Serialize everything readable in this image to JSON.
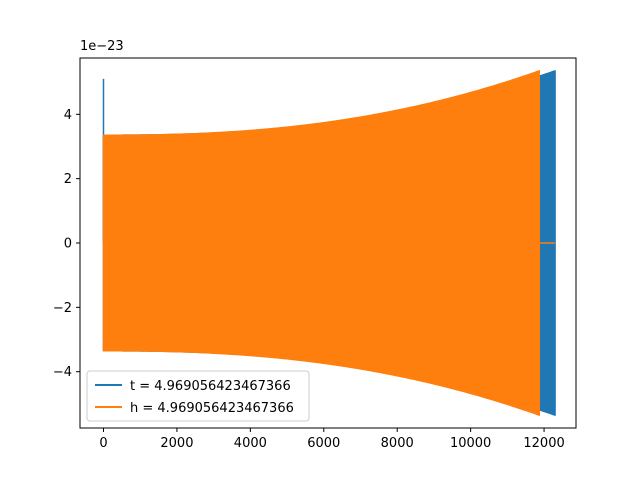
{
  "chart_data": {
    "type": "line",
    "title": "",
    "xlabel": "",
    "ylabel": "",
    "offset_label": "1e−23",
    "xlim": [
      -640,
      12870
    ],
    "ylim": [
      -5.75,
      5.75
    ],
    "x_ticks": [
      0,
      2000,
      4000,
      6000,
      8000,
      10000,
      12000
    ],
    "x_tick_labels": [
      "0",
      "2000",
      "4000",
      "6000",
      "8000",
      "10000",
      "12000"
    ],
    "y_ticks": [
      -4,
      -2,
      0,
      2,
      4
    ],
    "y_tick_labels": [
      "−4",
      "−2",
      "0",
      "2",
      "4"
    ],
    "grid": false,
    "legend_position": "lower-left",
    "series": [
      {
        "name": "t = 4.969056423467366",
        "color": "#1f77b4",
        "envelope": {
          "start_x": 0,
          "end_x": 12300,
          "start_amplitude": 3.35,
          "end_amplitude": 5.35,
          "initial_spike": 5.1
        }
      },
      {
        "name": "h = 4.969056423467366",
        "color": "#ff7f0e",
        "envelope": {
          "start_x": 0,
          "end_x": 11870,
          "start_amplitude": 3.35,
          "end_amplitude": 5.35
        },
        "tail_x_end": 12300
      }
    ]
  }
}
